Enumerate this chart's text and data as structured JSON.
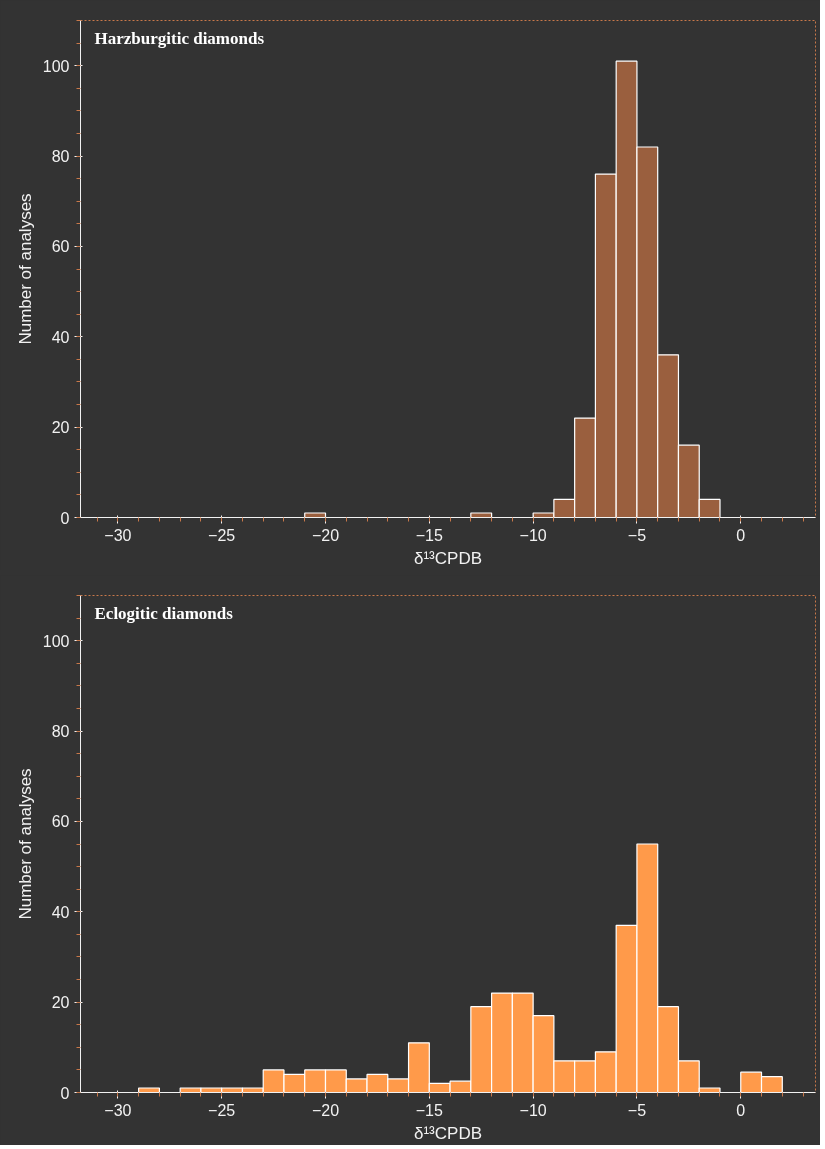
{
  "chart_data": [
    {
      "type": "histogram",
      "title": "Harzburgitic diamonds",
      "xlabel": "δ¹³CPDB",
      "ylabel": "Number of analyses",
      "color": "#9a5f3e",
      "bins": [
        -21,
        -20,
        -19,
        -18,
        -17,
        -16,
        -15,
        -14,
        -13,
        -12,
        -11,
        -10,
        -9,
        -8,
        -7,
        -6,
        -5,
        -4,
        -3,
        -2,
        -1
      ],
      "values": [
        1,
        0,
        0,
        0,
        0,
        0,
        0,
        0,
        1,
        0,
        0,
        1,
        4,
        22,
        76,
        101,
        82,
        36,
        16,
        4
      ],
      "xlim": [
        -31.8,
        3.6
      ],
      "ylim": [
        0,
        110
      ],
      "xticks": [
        {
          "value": -30,
          "label": "−30"
        },
        {
          "value": -25,
          "label": "−25"
        },
        {
          "value": -20,
          "label": "−20"
        },
        {
          "value": -15,
          "label": "−15"
        },
        {
          "value": -10,
          "label": "−10"
        },
        {
          "value": -5,
          "label": "−5"
        },
        0
      ],
      "yticks": [
        0,
        20,
        40,
        60,
        80,
        100
      ]
    },
    {
      "type": "histogram",
      "title": "Eclogitic diamonds",
      "xlabel": "δ¹³CPDB",
      "ylabel": "Number of analyses",
      "color": "#ff9a4a",
      "bins": [
        -29,
        -28,
        -27,
        -26,
        -25,
        -24,
        -23,
        -22,
        -21,
        -20,
        -19,
        -18,
        -17,
        -16,
        -15,
        -14,
        -13,
        -12,
        -11,
        -10,
        -9,
        -8,
        -7,
        -6,
        -5,
        -4,
        -3,
        -2,
        -1,
        0,
        1,
        2
      ],
      "values": [
        1,
        0,
        1,
        1,
        1,
        1,
        5,
        4,
        5,
        5,
        3,
        4,
        3,
        11,
        2,
        2.5,
        19,
        22,
        22,
        17,
        7,
        7,
        9,
        37,
        55,
        19,
        7,
        1,
        0,
        4.5,
        3.5
      ],
      "xlim": [
        -31.8,
        3.6
      ],
      "ylim": [
        0,
        110
      ],
      "xticks": [
        {
          "value": -30,
          "label": "−30"
        },
        {
          "value": -25,
          "label": "−25"
        },
        {
          "value": -20,
          "label": "−20"
        },
        {
          "value": -15,
          "label": "−15"
        },
        {
          "value": -10,
          "label": "−10"
        },
        {
          "value": -5,
          "label": "−5"
        },
        0
      ],
      "yticks": [
        0,
        20,
        40,
        60,
        80,
        100
      ]
    }
  ]
}
